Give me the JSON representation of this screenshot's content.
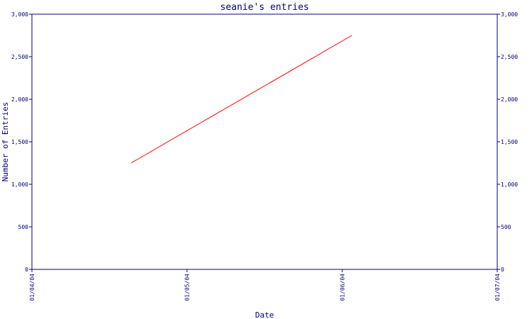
{
  "chart_data": {
    "type": "line",
    "title": "seanie's entries",
    "xlabel": "Date",
    "ylabel": "Number of Entries",
    "x_ticks": [
      "01/04/04",
      "01/05/04",
      "01/06/04",
      "01/07/04"
    ],
    "y_ticks": [
      "0",
      "500",
      "1,000",
      "1,500",
      "2,000",
      "2,500",
      "3,000"
    ],
    "ylim": [
      0,
      3000
    ],
    "xlim": [
      "2004-01-04",
      "2004-01-07"
    ],
    "series": [
      {
        "x": [
          "2004-01-04 15:20",
          "2004-01-06 01:30"
        ],
        "values": [
          1250,
          2750
        ]
      }
    ],
    "grid": false,
    "colors": {
      "axis": "#000080",
      "line": "#ff0000"
    }
  }
}
